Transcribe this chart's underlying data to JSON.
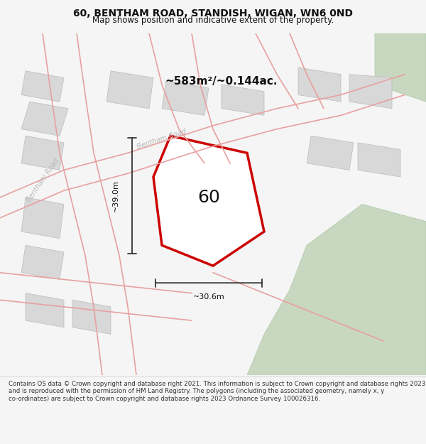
{
  "title": "60, BENTHAM ROAD, STANDISH, WIGAN, WN6 0ND",
  "subtitle": "Map shows position and indicative extent of the property.",
  "area_text": "~583m²/~0.144ac.",
  "label": "60",
  "dim_height": "~39.0m",
  "dim_width": "~30.6m",
  "footer": "Contains OS data © Crown copyright and database right 2021. This information is subject to Crown copyright and database rights 2023 and is reproduced with the permission of HM Land Registry. The polygons (including the associated geometry, namely x, y co-ordinates) are subject to Crown copyright and database rights 2023 Ordnance Survey 100026316.",
  "bg_color": "#f5f5f5",
  "map_bg": "#ffffff",
  "road_color": "#e8a0a0",
  "building_color": "#d8d8d8",
  "building_edge": "#bbbbbb",
  "green_color": "#c8d8c0",
  "green_edge": "#b0c8a8",
  "property_color": "#ffffff",
  "property_edge": "#cc0000",
  "road_label_color": "#bbbbbb",
  "text_color": "#111111",
  "footer_color": "#333333"
}
